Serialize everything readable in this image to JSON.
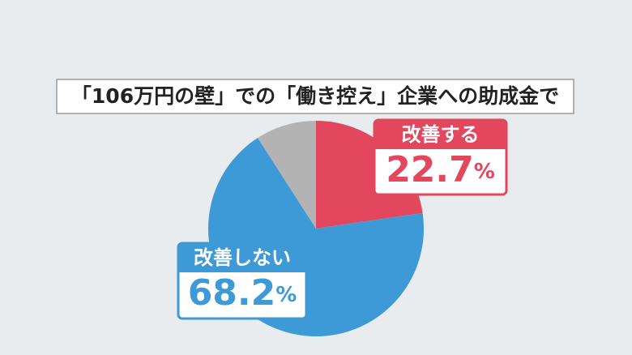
{
  "chart_data": {
    "type": "pie",
    "title": "「106万円の壁」での「働き控え」企業への助成金で",
    "categories": [
      "改善する",
      "改善しない",
      null
    ],
    "values": [
      22.7,
      68.2,
      9.1
    ],
    "value_labels": [
      "22.7%",
      "68.2%",
      null
    ],
    "colors": [
      "#e2475e",
      "#3d9ad7",
      "#b3b3b3"
    ]
  }
}
